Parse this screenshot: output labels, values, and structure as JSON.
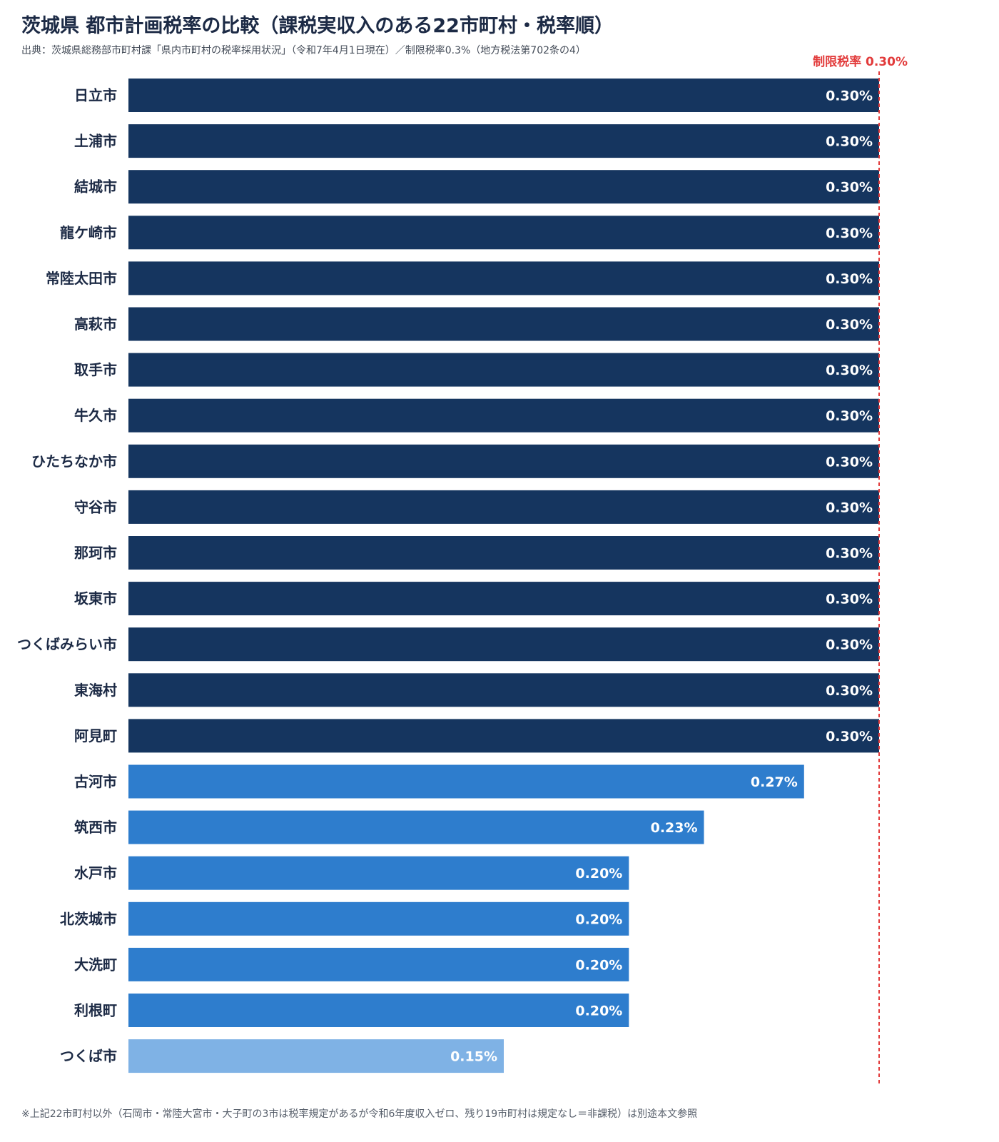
{
  "title": "茨城県 都市計画税率の比較（課税実収入のある22市町村・税率順）",
  "subtitle": "出典：茨城県総務部市町村課「県内市町村の税率採用状況」（令和7年4月1日現在）／制限税率0.3%（地方税法第702条の4）",
  "footnote": "※上記22市町村以外（石岡市・常陸大宮市・大子町の3市は税率規定があるが令和6年度収入ゼロ、残り19市町村は規定なし＝非課税）は別途本文参照",
  "colors": {
    "max": "#15355f",
    "mid": "#2e7dcd",
    "low": "#7fb2e5",
    "limit_line": "#e23b3b"
  },
  "chart_data": {
    "type": "bar",
    "orientation": "horizontal",
    "unit": "%",
    "categories": [
      "日立市",
      "土浦市",
      "結城市",
      "龍ケ崎市",
      "常陸太田市",
      "高萩市",
      "取手市",
      "牛久市",
      "ひたちなか市",
      "守谷市",
      "那珂市",
      "坂東市",
      "つくばみらい市",
      "東海村",
      "阿見町",
      "古河市",
      "筑西市",
      "水戸市",
      "北茨城市",
      "大洗町",
      "利根町",
      "つくば市"
    ],
    "values": [
      0.3,
      0.3,
      0.3,
      0.3,
      0.3,
      0.3,
      0.3,
      0.3,
      0.3,
      0.3,
      0.3,
      0.3,
      0.3,
      0.3,
      0.3,
      0.27,
      0.23,
      0.2,
      0.2,
      0.2,
      0.2,
      0.15
    ],
    "value_labels": [
      "0.30%",
      "0.30%",
      "0.30%",
      "0.30%",
      "0.30%",
      "0.30%",
      "0.30%",
      "0.30%",
      "0.30%",
      "0.30%",
      "0.30%",
      "0.30%",
      "0.30%",
      "0.30%",
      "0.30%",
      "0.27%",
      "0.23%",
      "0.20%",
      "0.20%",
      "0.20%",
      "0.20%",
      "0.15%"
    ],
    "xlim": [
      0,
      0.3
    ],
    "grid": false,
    "legend": "none",
    "reference_line": {
      "value": 0.3,
      "label": "制限税率 0.30%",
      "style": "dashed"
    }
  }
}
